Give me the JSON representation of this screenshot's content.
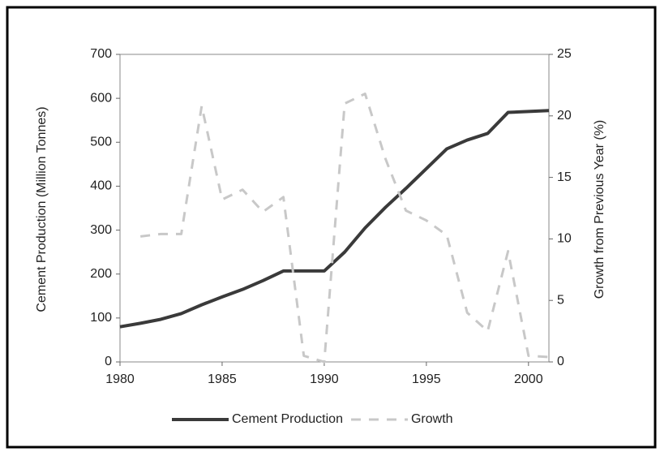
{
  "chart_data": {
    "type": "line",
    "x": [
      1980,
      1981,
      1982,
      1983,
      1984,
      1985,
      1986,
      1987,
      1988,
      1989,
      1990,
      1991,
      1992,
      1993,
      1994,
      1995,
      1996,
      1997,
      1998,
      1999,
      2000,
      2001
    ],
    "series": [
      {
        "name": "Cement Production",
        "color": "#3a3a3a",
        "dash": false,
        "values": [
          80,
          88,
          97,
          110,
          130,
          148,
          165,
          185,
          207,
          207,
          207,
          250,
          305,
          352,
          395,
          440,
          485,
          505,
          520,
          568,
          570,
          572
        ]
      },
      {
        "name": "Growth",
        "color": "#c8c8c8",
        "dash": true,
        "axis": "y2",
        "values": [
          null,
          10.2,
          10.4,
          10.4,
          20.8,
          13.2,
          14,
          12.2,
          13.4,
          0.5,
          0,
          21,
          21.8,
          16.5,
          12.3,
          11.5,
          10.3,
          4,
          2.5,
          9,
          0.5,
          0.4
        ]
      }
    ],
    "ylabel": "Cement Production (Million Tonnes)",
    "y2label": "Growth from Previous Year (%)",
    "xlim": [
      1980,
      2001
    ],
    "xticks": [
      1980,
      1985,
      1990,
      1995,
      2000
    ],
    "ylim": [
      0,
      700
    ],
    "yticks": [
      0,
      100,
      200,
      300,
      400,
      500,
      600,
      700
    ],
    "y2lim": [
      0,
      25
    ],
    "y2ticks": [
      0,
      5,
      10,
      15,
      20,
      25
    ],
    "legend": "bottom"
  }
}
